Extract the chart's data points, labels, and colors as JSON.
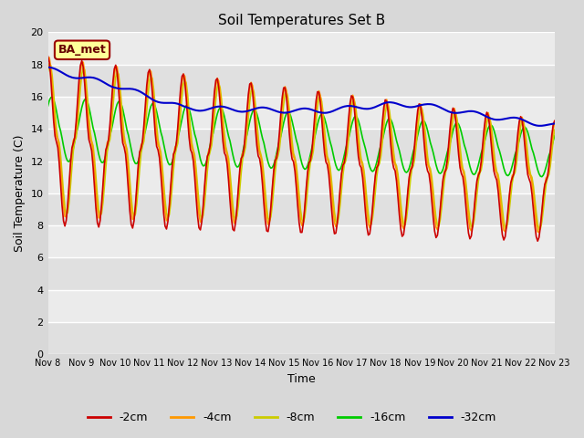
{
  "title": "Soil Temperatures Set B",
  "xlabel": "Time",
  "ylabel": "Soil Temperature (C)",
  "ylim": [
    0,
    20
  ],
  "yticks": [
    0,
    2,
    4,
    6,
    8,
    10,
    12,
    14,
    16,
    18,
    20
  ],
  "x_tick_labels": [
    "Nov 8",
    "Nov 9",
    "Nov 10",
    "Nov 11",
    "Nov 12",
    "Nov 13",
    "Nov 14",
    "Nov 15",
    "Nov 16",
    "Nov 17",
    "Nov 18",
    "Nov 19",
    "Nov 20",
    "Nov 21",
    "Nov 22",
    "Nov 23"
  ],
  "colors": {
    "-2cm": "#cc0000",
    "-4cm": "#ff9900",
    "-8cm": "#cccc00",
    "-16cm": "#00cc00",
    "-32cm": "#0000cc"
  },
  "legend_label": "BA_met",
  "legend_box_facecolor": "#ffff99",
  "legend_box_edgecolor": "#990000",
  "fig_facecolor": "#d8d8d8",
  "ax_facecolor": "#e8e8e8",
  "grid_color": "#ffffff",
  "linewidth_shallow": 1.2,
  "linewidth_deep": 1.5,
  "n_days": 15,
  "n_pts": 360
}
